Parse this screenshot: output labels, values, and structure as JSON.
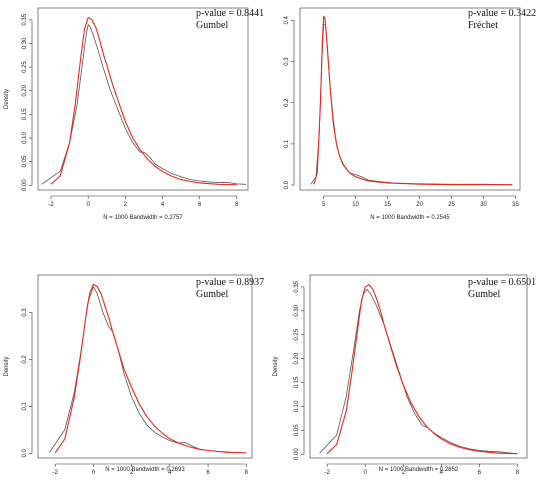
{
  "chart_data": [
    {
      "type": "line",
      "title": "",
      "ylabel": "Density",
      "subtitle": "N = 1000   Bandwidth = 0.2757",
      "annotation_lines": [
        "p-value = 0.8441",
        "Gumbel"
      ],
      "xlim": [
        -2.7,
        8.6
      ],
      "ylim": [
        -0.01,
        0.375
      ],
      "xticks": [
        -2,
        0,
        2,
        4,
        6,
        8
      ],
      "yticks": [
        0.0,
        0.05,
        0.1,
        0.15,
        0.2,
        0.25,
        0.3,
        0.35
      ],
      "ytick_labels": [
        "0.00",
        "0.05",
        "0.10",
        "0.15",
        "0.20",
        "0.25",
        "0.30",
        "0.35"
      ],
      "series": [
        {
          "color": "#555555",
          "x": [
            -2.5,
            -1.5,
            -1.0,
            -0.6,
            -0.3,
            -0.1,
            0.0,
            0.1,
            0.25,
            0.5,
            0.8,
            1.2,
            1.6,
            2.0,
            2.4,
            2.8,
            3.0,
            3.3,
            3.6,
            4.0,
            4.5,
            5.0,
            5.5,
            6.0,
            6.5,
            7.0,
            7.5,
            8.0,
            8.5
          ],
          "y": [
            0.002,
            0.03,
            0.09,
            0.17,
            0.26,
            0.32,
            0.34,
            0.335,
            0.32,
            0.29,
            0.25,
            0.2,
            0.16,
            0.12,
            0.09,
            0.07,
            0.07,
            0.06,
            0.045,
            0.035,
            0.025,
            0.018,
            0.012,
            0.009,
            0.007,
            0.006,
            0.006,
            0.003,
            0.002
          ]
        },
        {
          "color": "#e8281e",
          "x": [
            -2.0,
            -1.5,
            -1.0,
            -0.7,
            -0.4,
            -0.2,
            0.0,
            0.2,
            0.4,
            0.6,
            0.8,
            1.0,
            1.3,
            1.6,
            2.0,
            2.4,
            2.8,
            3.2,
            3.6,
            4.0,
            4.5,
            5.0,
            5.5,
            6.0,
            7.0,
            8.0
          ],
          "y": [
            0.002,
            0.02,
            0.09,
            0.17,
            0.27,
            0.33,
            0.355,
            0.35,
            0.335,
            0.31,
            0.28,
            0.255,
            0.215,
            0.18,
            0.135,
            0.1,
            0.075,
            0.055,
            0.04,
            0.029,
            0.019,
            0.012,
            0.008,
            0.005,
            0.002,
            0.001
          ]
        }
      ]
    },
    {
      "type": "line",
      "title": "",
      "ylabel": "",
      "subtitle": "N = 1000   Bandwidth = 0.2545",
      "annotation_lines": [
        "p-value = 0.3422",
        "Fréchet"
      ],
      "xlim": [
        1.3,
        35.7
      ],
      "ylim": [
        -0.012,
        0.43
      ],
      "xticks": [
        5,
        10,
        15,
        20,
        25,
        30,
        35
      ],
      "yticks": [
        0.0,
        0.1,
        0.2,
        0.3,
        0.4
      ],
      "ytick_labels": [
        "0.0",
        "0.1",
        "0.2",
        "0.3",
        "0.4"
      ],
      "series": [
        {
          "color": "#555555",
          "x": [
            3.0,
            3.8,
            4.3,
            4.7,
            5.0,
            5.3,
            5.6,
            6.0,
            6.5,
            7.0,
            7.5,
            8.0,
            8.5,
            9.0,
            10.0,
            11.0,
            12.0,
            14.0,
            16.0,
            20.0,
            25.0,
            30.0,
            34.5
          ],
          "y": [
            0.002,
            0.02,
            0.12,
            0.3,
            0.39,
            0.39,
            0.33,
            0.24,
            0.16,
            0.1,
            0.07,
            0.05,
            0.04,
            0.03,
            0.025,
            0.02,
            0.012,
            0.008,
            0.005,
            0.003,
            0.002,
            0.002,
            0.001
          ]
        },
        {
          "color": "#e8281e",
          "x": [
            3.5,
            4.0,
            4.5,
            4.8,
            5.0,
            5.2,
            5.5,
            6.0,
            6.5,
            7.0,
            7.5,
            8.0,
            9.0,
            10.0,
            12.0,
            15.0,
            20.0,
            25.0,
            30.0,
            34.5
          ],
          "y": [
            0.002,
            0.03,
            0.2,
            0.35,
            0.41,
            0.405,
            0.35,
            0.24,
            0.15,
            0.1,
            0.07,
            0.052,
            0.03,
            0.02,
            0.01,
            0.005,
            0.002,
            0.001,
            0.0008,
            0.0005
          ]
        }
      ]
    },
    {
      "type": "line",
      "title": "",
      "ylabel": "Density",
      "subtitle": "N = 1000   Bandwidth = 0.2693",
      "annotation_lines": [
        "p-value = 0.8937",
        "Gumbel"
      ],
      "xlim": [
        -2.9,
        8.3
      ],
      "ylim": [
        -0.01,
        0.38
      ],
      "xticks": [
        -2,
        0,
        2,
        4,
        6,
        8
      ],
      "yticks": [
        0.0,
        0.1,
        0.2,
        0.3
      ],
      "ytick_labels": [
        "0.0",
        "0.1",
        "0.2",
        "0.3"
      ],
      "series": [
        {
          "color": "#555555",
          "x": [
            -2.3,
            -1.5,
            -1.0,
            -0.6,
            -0.3,
            0.0,
            0.2,
            0.5,
            0.8,
            1.0,
            1.3,
            1.6,
            2.0,
            2.4,
            2.8,
            3.2,
            3.6,
            4.0,
            4.4,
            4.8,
            5.2,
            5.6,
            6.0,
            6.5,
            7.0,
            7.5
          ],
          "y": [
            0.002,
            0.05,
            0.13,
            0.23,
            0.32,
            0.355,
            0.34,
            0.3,
            0.27,
            0.26,
            0.22,
            0.17,
            0.12,
            0.085,
            0.06,
            0.045,
            0.035,
            0.027,
            0.022,
            0.023,
            0.015,
            0.008,
            0.006,
            0.004,
            0.003,
            0.001
          ]
        },
        {
          "color": "#e8281e",
          "x": [
            -2.0,
            -1.5,
            -1.0,
            -0.7,
            -0.4,
            -0.2,
            0.0,
            0.2,
            0.4,
            0.6,
            0.8,
            1.0,
            1.3,
            1.6,
            2.0,
            2.4,
            2.8,
            3.2,
            3.6,
            4.0,
            4.5,
            5.0,
            5.5,
            6.0,
            7.0,
            8.0
          ],
          "y": [
            0.001,
            0.03,
            0.12,
            0.2,
            0.29,
            0.34,
            0.36,
            0.355,
            0.34,
            0.315,
            0.29,
            0.26,
            0.22,
            0.18,
            0.14,
            0.105,
            0.078,
            0.058,
            0.043,
            0.031,
            0.021,
            0.014,
            0.009,
            0.006,
            0.002,
            0.001
          ]
        }
      ]
    },
    {
      "type": "line",
      "title": "",
      "ylabel": "Density",
      "subtitle": "N = 1000   Bandwidth = 0.2852",
      "annotation_lines": [
        "p-value = 0.6501",
        "Gumbel"
      ],
      "xlim": [
        -2.9,
        8.5
      ],
      "ylim": [
        -0.008,
        0.375
      ],
      "xticks": [
        -2,
        0,
        2,
        4,
        6,
        8
      ],
      "yticks": [
        0.0,
        0.05,
        0.1,
        0.15,
        0.2,
        0.25,
        0.3,
        0.35
      ],
      "ytick_labels": [
        "0.00",
        "0.05",
        "0.10",
        "0.15",
        "0.20",
        "0.25",
        "0.30",
        "0.35"
      ],
      "series": [
        {
          "color": "#555555",
          "x": [
            -2.4,
            -1.5,
            -1.0,
            -0.6,
            -0.3,
            -0.1,
            0.1,
            0.3,
            0.6,
            1.0,
            1.4,
            1.8,
            2.2,
            2.6,
            3.0,
            3.3,
            3.6,
            4.0,
            4.5,
            5.0,
            5.5,
            6.0,
            6.5,
            7.0,
            7.5,
            8.0
          ],
          "y": [
            0.002,
            0.04,
            0.12,
            0.22,
            0.3,
            0.335,
            0.345,
            0.335,
            0.31,
            0.27,
            0.22,
            0.17,
            0.12,
            0.085,
            0.06,
            0.055,
            0.045,
            0.035,
            0.024,
            0.016,
            0.011,
            0.008,
            0.006,
            0.005,
            0.003,
            0.001
          ]
        },
        {
          "color": "#e8281e",
          "x": [
            -2.0,
            -1.5,
            -1.0,
            -0.7,
            -0.4,
            -0.2,
            0.0,
            0.2,
            0.4,
            0.6,
            0.8,
            1.0,
            1.3,
            1.6,
            2.0,
            2.4,
            2.8,
            3.2,
            3.6,
            4.0,
            4.5,
            5.0,
            5.5,
            6.0,
            7.0,
            8.0
          ],
          "y": [
            0.001,
            0.02,
            0.09,
            0.17,
            0.26,
            0.32,
            0.35,
            0.355,
            0.345,
            0.325,
            0.3,
            0.27,
            0.23,
            0.19,
            0.145,
            0.108,
            0.08,
            0.059,
            0.044,
            0.032,
            0.021,
            0.014,
            0.009,
            0.006,
            0.002,
            0.001
          ]
        }
      ]
    }
  ]
}
